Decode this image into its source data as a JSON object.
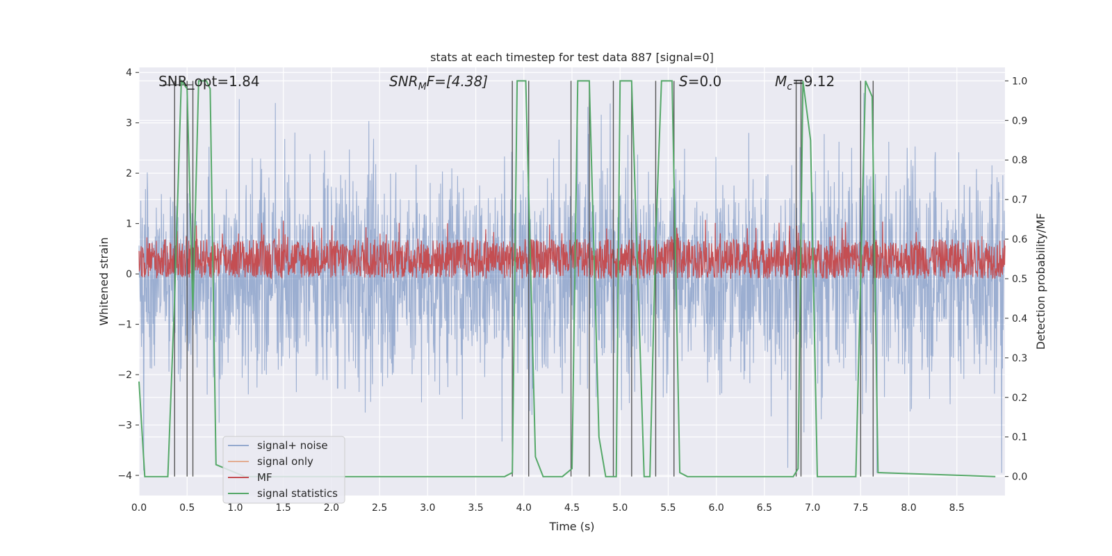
{
  "chart_data": {
    "type": "line",
    "title": "stats at each timestep for test data 887 [signal=0]",
    "xlabel": "Time (s)",
    "ylabel_left": "Whitened strain",
    "ylabel_right": "Detection probability/MF",
    "xlim": [
      0.0,
      9.0
    ],
    "ylim_left": [
      -4.4,
      4.1
    ],
    "ylim_right": [
      -0.048,
      1.034
    ],
    "x_ticks": [
      "0.0",
      "0.5",
      "1.0",
      "1.5",
      "2.0",
      "2.5",
      "3.0",
      "3.5",
      "4.0",
      "4.5",
      "5.0",
      "5.5",
      "6.0",
      "6.5",
      "7.0",
      "7.5",
      "8.0",
      "8.5"
    ],
    "y_left_ticks": [
      "4",
      "3",
      "2",
      "1",
      "0",
      "−1",
      "−2",
      "−3",
      "−4"
    ],
    "y_right_ticks": [
      "1.0",
      "0.9",
      "0.8",
      "0.7",
      "0.6",
      "0.5",
      "0.4",
      "0.3",
      "0.2",
      "0.1",
      "0.0"
    ],
    "grid": true,
    "legend_position": "lower-left",
    "annotations": {
      "snr_opt": "SNR_opt=1.84",
      "snr_mf_sym": "SNR",
      "snr_mf_sub": "M",
      "snr_mf_tail": "F=[4.38]",
      "s_sym": "S",
      "s_val": "=0.0",
      "mc_sym": "M",
      "mc_sub": "c",
      "mc_val": "=9.12"
    },
    "series": [
      {
        "name": "signal+ noise",
        "color": "#4c72b0",
        "axis": "left",
        "description_values": "noise band roughly between -2 and 2, peaks to ±3.7"
      },
      {
        "name": "signal only",
        "color": "#dd8452",
        "axis": "left",
        "values": []
      },
      {
        "name": "MF",
        "color": "#c44e52",
        "axis": "right",
        "range": [
          0.5,
          0.6
        ]
      },
      {
        "name": "signal statistics",
        "color": "#55a868",
        "axis": "right",
        "x": [
          0.0,
          0.06,
          0.3,
          0.37,
          0.44,
          0.5,
          0.56,
          0.62,
          0.7,
          0.74,
          0.8,
          1.1,
          1.2,
          3.8,
          3.88,
          3.93,
          4.02,
          4.12,
          4.2,
          4.4,
          4.5,
          4.56,
          4.68,
          4.78,
          4.85,
          4.96,
          5.0,
          5.12,
          5.25,
          5.31,
          5.37,
          5.43,
          5.54,
          5.62,
          5.7,
          6.8,
          6.85,
          6.9,
          6.98,
          7.05,
          7.45,
          7.55,
          7.62,
          7.68,
          8.9
        ],
        "y": [
          0.24,
          0.0,
          0.0,
          0.45,
          1.0,
          0.98,
          0.42,
          1.0,
          1.0,
          0.98,
          0.03,
          0.0,
          0.0,
          0.0,
          0.01,
          1.0,
          1.0,
          0.05,
          0.0,
          0.0,
          0.02,
          1.0,
          1.0,
          0.1,
          0.0,
          0.0,
          1.0,
          1.0,
          0.0,
          0.0,
          0.6,
          1.0,
          1.0,
          0.01,
          0.0,
          0.0,
          0.02,
          1.0,
          0.85,
          0.0,
          0.0,
          1.0,
          0.96,
          0.01,
          0.0
        ]
      }
    ],
    "vertical_markers_x": [
      0.37,
      0.5,
      0.56,
      3.88,
      4.05,
      4.49,
      4.68,
      4.93,
      5.12,
      5.37,
      5.56,
      6.83,
      6.88,
      7.5,
      7.63
    ],
    "grey_whisker_x": [
      0.25,
      0.5,
      0.56
    ]
  }
}
